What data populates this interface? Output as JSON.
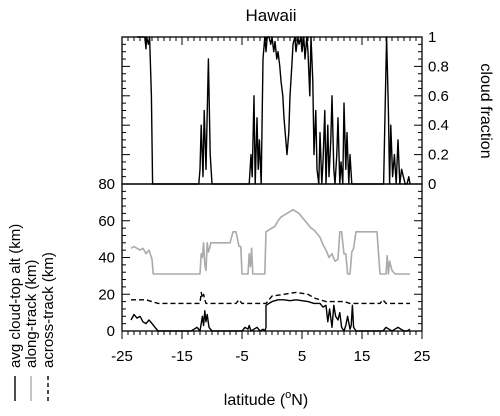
{
  "chart_data": {
    "type": "line",
    "title": "Hawaii",
    "xlabel": "latitude (°N)",
    "xlabel_main": "latitude (",
    "xlabel_sup": "o",
    "xlabel_end": "N)",
    "xlim": [
      -25,
      25
    ],
    "x_ticks": [
      -25,
      -15,
      -5,
      5,
      15,
      25
    ],
    "x_tick_labels": [
      "-25",
      "-15",
      "-5",
      "5",
      "15",
      "25"
    ],
    "left_ylim": [
      0,
      80
    ],
    "left_ticks": [
      0,
      20,
      40,
      60,
      80
    ],
    "left_tick_labels": [
      "0",
      "20",
      "40",
      "60",
      "80"
    ],
    "right_axis": {
      "label": "cloud fraction",
      "ylim": [
        0,
        1
      ],
      "ticks": [
        0,
        0.2,
        0.4,
        0.6,
        0.8,
        1
      ],
      "tick_labels": [
        "0",
        "0.2",
        "0.4",
        "0.6",
        "0.8",
        "1"
      ]
    },
    "grid": false,
    "legend_position": "left-vertical",
    "series": [
      {
        "name": "cloud fraction",
        "axis": "right",
        "color": "#000000",
        "x": [
          -22.5,
          -21.2,
          -21.0,
          -20.9,
          -20.6,
          -20.4,
          -20.1,
          -19.9,
          -19.6,
          -19.3,
          -19.0,
          -18.5,
          -12.2,
          -12.0,
          -11.8,
          -11.5,
          -11.3,
          -11.0,
          -10.6,
          -10.3,
          -10.0,
          -9.5,
          -3.8,
          -3.5,
          -3.3,
          -3.0,
          -2.8,
          -2.5,
          -2.3,
          -2.1,
          -1.8,
          -1.5,
          -1.2,
          -1.0,
          -0.8,
          -0.5,
          -0.2,
          0.0,
          0.3,
          0.5,
          0.8,
          1.0,
          1.3,
          1.5,
          1.8,
          2.0,
          2.3,
          2.5,
          2.8,
          3.0,
          3.3,
          3.5,
          3.8,
          4.0,
          4.3,
          4.5,
          4.8,
          5.0,
          5.3,
          5.5,
          5.8,
          6.0,
          6.3,
          6.5,
          6.8,
          7.0,
          7.3,
          7.5,
          7.8,
          8.0,
          8.3,
          8.5,
          8.8,
          9.0,
          9.3,
          9.5,
          9.8,
          10.0,
          10.3,
          10.5,
          10.8,
          11.0,
          11.3,
          11.5,
          11.8,
          12.0,
          12.3,
          12.5,
          12.8,
          13.0,
          13.3,
          13.5,
          13.8,
          14.0,
          18.6,
          18.9,
          19.1,
          19.4,
          19.6,
          19.8,
          20.1,
          20.4,
          20.7,
          21.0,
          21.3,
          21.6,
          21.9,
          22.2,
          22.5,
          22.8,
          23.0
        ],
        "values": [
          1.0,
          1.0,
          0.92,
          1.0,
          0.95,
          1.0,
          0.6,
          0.0,
          0.0,
          0.0,
          0.0,
          0.0,
          0.0,
          0.1,
          0.4,
          0.05,
          0.5,
          0.1,
          0.85,
          0.2,
          0.0,
          0.0,
          0.0,
          0.2,
          0.05,
          0.6,
          0.0,
          0.45,
          0.1,
          0.3,
          0.0,
          0.85,
          1.0,
          0.9,
          1.0,
          1.0,
          0.95,
          1.0,
          0.9,
          0.97,
          0.85,
          0.9,
          0.8,
          0.7,
          0.6,
          0.45,
          0.3,
          0.2,
          0.35,
          0.6,
          0.8,
          0.95,
          1.0,
          0.9,
          1.0,
          0.95,
          1.0,
          0.9,
          1.0,
          0.85,
          1.0,
          0.9,
          0.6,
          1.0,
          0.7,
          0.2,
          0.5,
          0.1,
          0.0,
          0.35,
          0.0,
          0.15,
          0.5,
          0.0,
          0.4,
          0.05,
          0.3,
          0.6,
          0.1,
          0.0,
          0.2,
          0.45,
          0.0,
          0.15,
          0.0,
          0.55,
          0.1,
          0.35,
          0.0,
          0.2,
          0.0,
          0.0,
          0.0,
          0.0,
          0.0,
          0.6,
          1.0,
          0.5,
          0.0,
          0.4,
          0.05,
          0.2,
          0.0,
          0.3,
          0.0,
          0.1,
          0.05,
          0.0,
          0.0,
          0.05,
          0.0
        ]
      },
      {
        "name": "avg cloud-top alt (km)",
        "axis": "left",
        "color": "#000000",
        "x": [
          -23.5,
          -23.0,
          -22.5,
          -22.0,
          -21.5,
          -21.0,
          -20.5,
          -20.0,
          -19.5,
          -19.0,
          -18.5,
          -18.0,
          -17.0,
          -16.0,
          -15.0,
          -14.0,
          -13.5,
          -13.0,
          -12.5,
          -12.0,
          -11.8,
          -11.6,
          -11.4,
          -11.2,
          -11.0,
          -10.8,
          -10.5,
          -10.0,
          -9.5,
          -9.0,
          -7.0,
          -6.0,
          -5.0,
          -4.5,
          -4.0,
          -3.8,
          -3.5,
          -3.0,
          -2.5,
          -2.0,
          -1.5,
          -1.2,
          -1.0,
          -1.0,
          -0.5,
          0.0,
          0.5,
          1.0,
          2.0,
          3.0,
          4.0,
          5.0,
          6.0,
          7.0,
          8.0,
          8.5,
          9.0,
          9.3,
          9.6,
          10.0,
          10.3,
          10.6,
          11.0,
          11.3,
          11.6,
          12.0,
          12.3,
          12.6,
          13.0,
          13.2,
          13.4,
          13.6,
          14.0,
          18.0,
          18.5,
          19.0,
          19.5,
          20.0,
          20.5,
          21.0,
          21.5,
          22.0,
          22.5,
          23.0
        ],
        "values": [
          6,
          9,
          7,
          8,
          5,
          4,
          6,
          4,
          2,
          0,
          0,
          0,
          0,
          0,
          0,
          0,
          0,
          1,
          2,
          0,
          4,
          8,
          3,
          11,
          5,
          9,
          2,
          0,
          0,
          0,
          0,
          0,
          0,
          2,
          1,
          3,
          0,
          1,
          2,
          0,
          1,
          0,
          2,
          14,
          15,
          16,
          16.5,
          17,
          17,
          16.5,
          17,
          16.5,
          16,
          15,
          15,
          13,
          14,
          5,
          12,
          2,
          14,
          8,
          6,
          10,
          2,
          0,
          3,
          8,
          1,
          3,
          14,
          2,
          0,
          0,
          0,
          2,
          1,
          0,
          1,
          2,
          1,
          0,
          0,
          1
        ]
      },
      {
        "name": "along-track (km)",
        "axis": "left",
        "color": "#aaaaaa",
        "x": [
          -23.5,
          -23.0,
          -22.5,
          -22.0,
          -21.5,
          -21.0,
          -20.5,
          -20.0,
          -19.8,
          -19.5,
          -17.0,
          -15.0,
          -13.0,
          -12.0,
          -11.8,
          -11.6,
          -11.4,
          -11.2,
          -11.0,
          -10.8,
          -10.6,
          -10.4,
          -10.2,
          -10.0,
          -9.5,
          -8.0,
          -7.0,
          -6.5,
          -6.0,
          -5.5,
          -5.2,
          -5.0,
          -4.8,
          -4.5,
          -4.0,
          -3.8,
          -3.6,
          -3.4,
          -3.2,
          -3.0,
          -2.5,
          -2.0,
          -1.5,
          -1.2,
          -1.0,
          -0.5,
          0.0,
          0.5,
          1.0,
          1.5,
          2.0,
          2.5,
          3.0,
          3.5,
          4.0,
          4.5,
          5.0,
          5.5,
          6.0,
          6.5,
          7.0,
          7.5,
          8.0,
          8.5,
          9.0,
          9.5,
          10.0,
          10.5,
          11.0,
          11.3,
          11.6,
          12.0,
          12.3,
          12.6,
          13.0,
          13.3,
          13.6,
          14.0,
          17.0,
          17.5,
          18.0,
          18.5,
          19.0,
          19.2,
          19.4,
          19.6,
          20.0,
          20.5,
          21.0,
          23.0
        ],
        "values": [
          45,
          46,
          45,
          44,
          45,
          42,
          44,
          39,
          31,
          31,
          31,
          31,
          31,
          31,
          42,
          40,
          48,
          36,
          33,
          48,
          43,
          45,
          48,
          48,
          48,
          48,
          48,
          54,
          54,
          46,
          46,
          31,
          31,
          31,
          31,
          42,
          35,
          45,
          31,
          31,
          31,
          31,
          31,
          31,
          54,
          55,
          56,
          57,
          60,
          62,
          63,
          64,
          65,
          66,
          65,
          64,
          62,
          60,
          58,
          56,
          55,
          53,
          51,
          47,
          44,
          40,
          42,
          38,
          39,
          54,
          54,
          42,
          42,
          31,
          31,
          43,
          45,
          54,
          54,
          54,
          31,
          31,
          31,
          41,
          31,
          38,
          33,
          31,
          31,
          31
        ]
      },
      {
        "name": "across-track (km)",
        "axis": "left",
        "color": "#000000",
        "dash": true,
        "x": [
          -23.5,
          -21.0,
          -20.0,
          -19.0,
          -18.0,
          -17.0,
          -15.0,
          -13.0,
          -12.0,
          -11.8,
          -11.6,
          -11.4,
          -11.2,
          -11.0,
          -10.5,
          -8.0,
          -6.0,
          -5.5,
          -5.0,
          -4.0,
          -3.0,
          -2.0,
          -1.0,
          0.0,
          2.0,
          4.0,
          6.0,
          7.0,
          8.0,
          9.0,
          10.0,
          11.0,
          12.0,
          13.0,
          14.0,
          16.0,
          18.0,
          18.5,
          19.0,
          19.5,
          20.0,
          21.0,
          23.0
        ],
        "values": [
          17,
          17,
          16,
          15,
          15,
          15,
          15,
          15,
          15,
          21,
          18,
          20,
          17,
          15,
          15,
          15,
          15,
          17,
          15,
          15,
          15,
          15,
          15,
          19,
          20,
          21,
          20,
          18,
          17,
          16,
          16,
          16,
          16,
          15,
          15,
          15,
          15,
          17,
          15,
          15,
          15,
          15,
          15
        ]
      }
    ],
    "legend": [
      {
        "label": "avg cloud-top alt (km)",
        "style": "solid",
        "color": "#000000"
      },
      {
        "label": "along-track (km)",
        "style": "solid",
        "color": "#aaaaaa"
      },
      {
        "label": "across-track (km)",
        "style": "dashed",
        "color": "#000000"
      }
    ]
  }
}
